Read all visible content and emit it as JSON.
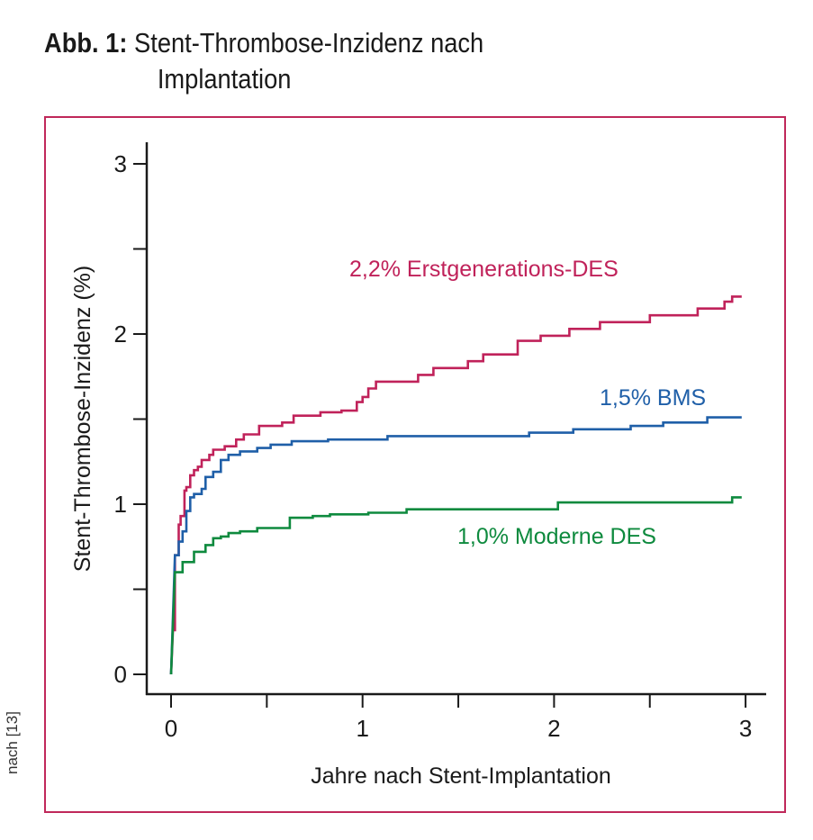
{
  "figure": {
    "prefix": "Abb. 1:",
    "title_line1": "Stent-Thrombose-Inzidenz nach",
    "title_line2": "Implantation",
    "source": "nach [13]"
  },
  "colors": {
    "frame": "#c0285a",
    "axis": "#1a1a1a"
  },
  "chart_data": {
    "type": "line",
    "title": "Stent-Thrombose-Inzidenz nach Implantation",
    "xlabel": "Jahre nach Stent-Implantation",
    "ylabel": "Stent-Thrombose-Inzidenz (%)",
    "xlim": [
      0,
      3
    ],
    "ylim": [
      0,
      3
    ],
    "xticks": [
      0,
      0.5,
      1,
      1.5,
      2,
      2.5,
      3
    ],
    "xtick_labels": [
      "0",
      "",
      "1",
      "",
      "2",
      "",
      "3"
    ],
    "yticks": [
      0,
      0.5,
      1,
      1.5,
      2,
      2.5,
      3
    ],
    "ytick_labels": [
      "0",
      "",
      "1",
      "",
      "2",
      "",
      "3"
    ],
    "grid": false,
    "step": true,
    "series": [
      {
        "name": "2,2% Erstgenerations-DES",
        "color": "#c0225a",
        "x": [
          0,
          0.01,
          0.02,
          0.04,
          0.05,
          0.07,
          0.08,
          0.1,
          0.12,
          0.14,
          0.16,
          0.2,
          0.22,
          0.28,
          0.34,
          0.38,
          0.46,
          0.58,
          0.64,
          0.78,
          0.89,
          0.97,
          1.0,
          1.03,
          1.07,
          1.29,
          1.37,
          1.55,
          1.63,
          1.81,
          1.93,
          2.08,
          2.24,
          2.5,
          2.75,
          2.89,
          2.93,
          2.98
        ],
        "y": [
          0,
          0.26,
          0.7,
          0.88,
          0.93,
          1.08,
          1.1,
          1.17,
          1.2,
          1.22,
          1.26,
          1.29,
          1.32,
          1.34,
          1.38,
          1.41,
          1.46,
          1.48,
          1.52,
          1.54,
          1.55,
          1.6,
          1.63,
          1.68,
          1.72,
          1.76,
          1.8,
          1.84,
          1.88,
          1.96,
          1.99,
          2.03,
          2.07,
          2.11,
          2.15,
          2.19,
          2.22,
          2.22
        ]
      },
      {
        "name": "1,5% BMS",
        "color": "#1f5fa8",
        "x": [
          0,
          0.02,
          0.04,
          0.06,
          0.08,
          0.1,
          0.12,
          0.16,
          0.18,
          0.22,
          0.26,
          0.3,
          0.36,
          0.45,
          0.52,
          0.63,
          0.82,
          1.13,
          1.87,
          2.1,
          2.4,
          2.57,
          2.8,
          2.98
        ],
        "y": [
          0,
          0.7,
          0.78,
          0.84,
          0.96,
          1.04,
          1.06,
          1.09,
          1.16,
          1.19,
          1.26,
          1.29,
          1.31,
          1.33,
          1.35,
          1.37,
          1.38,
          1.4,
          1.42,
          1.44,
          1.46,
          1.48,
          1.51,
          1.51
        ]
      },
      {
        "name": "1,0% Moderne DES",
        "color": "#0e8a3e",
        "x": [
          0,
          0.02,
          0.06,
          0.12,
          0.18,
          0.22,
          0.26,
          0.3,
          0.36,
          0.45,
          0.62,
          0.74,
          0.83,
          1.03,
          1.23,
          2.02,
          2.93,
          2.98
        ],
        "y": [
          0,
          0.6,
          0.66,
          0.72,
          0.76,
          0.8,
          0.81,
          0.83,
          0.84,
          0.86,
          0.92,
          0.93,
          0.94,
          0.95,
          0.97,
          1.01,
          1.04,
          1.04
        ]
      }
    ],
    "annotations": [
      {
        "text": "2,2% Erstgenerations-DES",
        "series": 0
      },
      {
        "text": "1,5% BMS",
        "series": 1
      },
      {
        "text": "1,0% Moderne DES",
        "series": 2
      }
    ]
  }
}
